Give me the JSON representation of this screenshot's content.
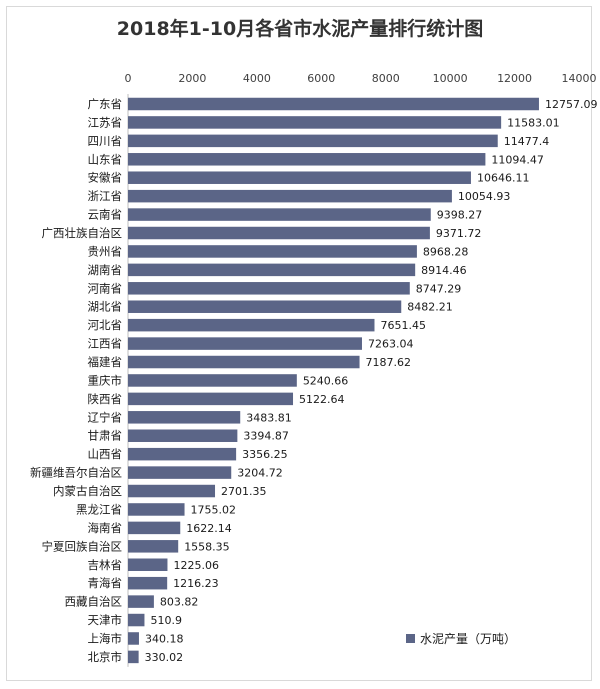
{
  "chart_data": {
    "type": "bar",
    "orientation": "horizontal",
    "title": "2018年1-10月各省市水泥产量排行统计图",
    "xlim": [
      0,
      14000
    ],
    "ticks": [
      0,
      2000,
      4000,
      6000,
      8000,
      10000,
      12000,
      14000
    ],
    "tick_labels": [
      "0",
      "2000",
      "4000",
      "6000",
      "8000",
      "10000",
      "12000",
      "14000"
    ],
    "axis_position": "top",
    "grid": false,
    "legend_position": "bottom-right",
    "bar_color": "#5b6587",
    "categories": [
      "广东省",
      "江苏省",
      "四川省",
      "山东省",
      "安徽省",
      "浙江省",
      "云南省",
      "广西壮族自治区",
      "贵州省",
      "湖南省",
      "河南省",
      "湖北省",
      "河北省",
      "江西省",
      "福建省",
      "重庆市",
      "陕西省",
      "辽宁省",
      "甘肃省",
      "山西省",
      "新疆维吾尔自治区",
      "内蒙古自治区",
      "黑龙江省",
      "海南省",
      "宁夏回族自治区",
      "吉林省",
      "青海省",
      "西藏自治区",
      "天津市",
      "上海市",
      "北京市"
    ],
    "series": [
      {
        "name": "水泥产量（万吨）",
        "values": [
          12757.09,
          11583.01,
          11477.4,
          11094.47,
          10646.11,
          10054.93,
          9398.27,
          9371.72,
          8968.28,
          8914.46,
          8747.29,
          8482.21,
          7651.45,
          7263.04,
          7187.62,
          5240.66,
          5122.64,
          3483.81,
          3394.87,
          3356.25,
          3204.72,
          2701.35,
          1755.02,
          1622.14,
          1558.35,
          1225.06,
          1216.23,
          803.82,
          510.9,
          340.18,
          330.02
        ],
        "labels": [
          "12757.09",
          "11583.01",
          "11477.4",
          "11094.47",
          "10646.11",
          "10054.93",
          "9398.27",
          "9371.72",
          "8968.28",
          "8914.46",
          "8747.29",
          "8482.21",
          "7651.45",
          "7263.04",
          "7187.62",
          "5240.66",
          "5122.64",
          "3483.81",
          "3394.87",
          "3356.25",
          "3204.72",
          "2701.35",
          "1755.02",
          "1622.14",
          "1558.35",
          "1225.06",
          "1216.23",
          "803.82",
          "510.9",
          "340.18",
          "330.02"
        ]
      }
    ]
  }
}
